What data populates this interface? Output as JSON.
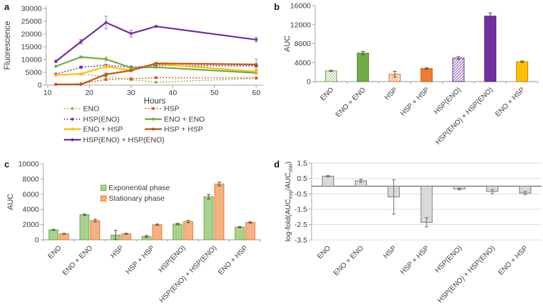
{
  "panel_labels": [
    "a",
    "b",
    "c",
    "d"
  ],
  "chart_data": [
    {
      "panel": "a",
      "type": "line",
      "xlabel": "Hours",
      "ylabel": "Fluorescence",
      "xlim": [
        10,
        60
      ],
      "ylim": [
        0,
        30000
      ],
      "xticks": [
        10,
        20,
        30,
        40,
        50,
        60
      ],
      "yticks": [
        0,
        5000,
        10000,
        15000,
        20000,
        25000,
        30000
      ],
      "x": [
        12,
        18,
        24,
        30,
        36,
        60
      ],
      "series": [
        {
          "name": "ENO",
          "color": "#85BC5E",
          "style": "dotted",
          "values": [
            3900,
            4300,
            3400,
            2100,
            1100,
            2700
          ],
          "errors": [
            150,
            250,
            400,
            250,
            150,
            300
          ]
        },
        {
          "name": "HSP",
          "color": "#D9531C",
          "style": "dotted",
          "values": [
            300,
            500,
            2200,
            2500,
            2900,
            2800
          ],
          "errors": [
            100,
            150,
            300,
            200,
            200,
            250
          ]
        },
        {
          "name": "HSP(ENO)",
          "color": "#7030A0",
          "style": "dotted",
          "values": [
            4300,
            7000,
            7800,
            7000,
            7700,
            7500
          ],
          "errors": [
            250,
            500,
            400,
            500,
            300,
            400
          ]
        },
        {
          "name": "ENO + ENO",
          "color": "#70AD47",
          "style": "solid",
          "values": [
            7400,
            11000,
            10200,
            6800,
            7000,
            4800
          ],
          "errors": [
            300,
            400,
            800,
            400,
            300,
            300
          ]
        },
        {
          "name": "ENO + HSP",
          "color": "#FFC000",
          "style": "solid",
          "values": [
            3900,
            4400,
            7300,
            5800,
            8300,
            5300
          ],
          "errors": [
            200,
            300,
            700,
            300,
            400,
            500
          ]
        },
        {
          "name": "HSP + HSP",
          "color": "#C55211",
          "style": "solid",
          "values": [
            300,
            300,
            4200,
            5700,
            8500,
            8100
          ],
          "errors": [
            100,
            150,
            600,
            400,
            400,
            2100
          ]
        },
        {
          "name": "HSP(ENO) + HSP(ENO)",
          "color": "#7030A0",
          "style": "solid",
          "values": [
            9300,
            17000,
            24500,
            20200,
            23000,
            17800
          ],
          "errors": [
            500,
            900,
            2500,
            1300,
            400,
            900
          ]
        }
      ],
      "legend_columns": [
        [
          "ENO",
          "HSP(ENO)",
          "ENO + HSP",
          "HSP(ENO) + HSP(ENO)"
        ],
        [
          "HSP",
          "ENO + ENO",
          "HSP + HSP"
        ]
      ]
    },
    {
      "panel": "b",
      "type": "bar",
      "ylabel": "AUC",
      "ylim": [
        0,
        16000
      ],
      "yticks": [
        0,
        4000,
        8000,
        12000,
        16000
      ],
      "categories": [
        "ENO",
        "ENO + ENO",
        "HSP",
        "HSP + HSP",
        "HSP(ENO)",
        "HSP(ENO) + HSP(ENO)",
        "ENO + HSP"
      ],
      "values": [
        2250,
        6000,
        1550,
        2750,
        4950,
        13800,
        4200
      ],
      "errors": [
        120,
        350,
        600,
        150,
        300,
        650,
        150
      ],
      "bar_styles": [
        {
          "fill": "hatch",
          "color": "#A9D18E",
          "border": "#70AD47"
        },
        {
          "fill": "solid",
          "color": "#70AD47",
          "border": "#548235"
        },
        {
          "fill": "hatch",
          "color": "#F0945A",
          "border": "#ED7D31"
        },
        {
          "fill": "solid",
          "color": "#ED7D31",
          "border": "#C55A11"
        },
        {
          "fill": "hatch",
          "color": "#9A6FC0",
          "border": "#7030A0"
        },
        {
          "fill": "solid",
          "color": "#7030A0",
          "border": "#5B2382"
        },
        {
          "fill": "solid",
          "color": "#FFC000",
          "border": "#BF9000"
        }
      ]
    },
    {
      "panel": "c",
      "type": "grouped-bar",
      "ylabel": "AUC",
      "ylim": [
        0,
        10000
      ],
      "yticks": [
        0,
        2000,
        4000,
        6000,
        8000,
        10000
      ],
      "categories": [
        "ENO",
        "ENO + ENO",
        "HSP",
        "HSP + HSP",
        "HSP(ENO)",
        "HSP(ENO) + HSP(ENO)",
        "ENO + HSP"
      ],
      "series": [
        {
          "name": "Exponential phase",
          "color": "#A9D18E",
          "border": "#70AD47",
          "values": [
            1300,
            3300,
            620,
            440,
            2060,
            5660,
            1660
          ],
          "errors": [
            80,
            80,
            600,
            120,
            100,
            300,
            70
          ]
        },
        {
          "name": "Stationary phase",
          "color": "#F4B183",
          "border": "#ED7D31",
          "values": [
            780,
            2520,
            780,
            1990,
            2400,
            7350,
            2280
          ],
          "errors": [
            60,
            180,
            70,
            80,
            150,
            250,
            80
          ]
        }
      ],
      "legend_position": "inside-top"
    },
    {
      "panel": "d",
      "type": "bar",
      "ylabel_parts": [
        {
          "t": "log-fold(AUC"
        },
        {
          "t": "exp",
          "sub": true
        },
        {
          "t": "/AUC"
        },
        {
          "t": "stat",
          "sub": true
        },
        {
          "t": ")"
        }
      ],
      "ylim": [
        -3.5,
        1.5
      ],
      "yticks": [
        1.5,
        0.5,
        -0.5,
        -1.5,
        -2.5,
        -3.5
      ],
      "grid": true,
      "zero_line": true,
      "categories": [
        "ENO",
        "ENO + ENO",
        "HSP",
        "HSP + HSP",
        "HSP(ENO)",
        "HSP(ENO) + HSP(ENO)",
        "ENO + HSP"
      ],
      "values": [
        0.65,
        0.35,
        -0.7,
        -2.35,
        -0.18,
        -0.35,
        -0.45
      ],
      "errors": [
        0.05,
        0.1,
        1.12,
        0.3,
        0.06,
        0.13,
        0.1
      ],
      "bar_styles_uniform": {
        "fill": "solid",
        "color": "#D9D9D9",
        "border": "#7F7F7F"
      }
    }
  ],
  "colors": {
    "green": "#70AD47",
    "light_green": "#A9D18E",
    "purple": "#7030A0",
    "orange": "#ED7D31",
    "light_orange": "#F4B183",
    "dark_orange": "#C55211",
    "gold": "#FFC000",
    "gray_bar": "#D9D9D9",
    "axis": "#A6A6A6",
    "grid": "#DDDDDD"
  }
}
